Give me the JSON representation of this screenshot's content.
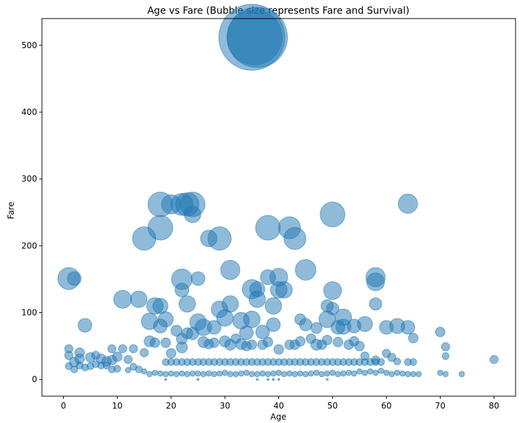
{
  "chart_data": {
    "type": "scatter",
    "title": "Age vs Fare (Bubble size represents Fare and Survival)",
    "xlabel": "Age",
    "ylabel": "Fare",
    "xlim": [
      -4,
      84
    ],
    "ylim": [
      -25,
      540
    ],
    "xticks": [
      0,
      10,
      20,
      30,
      40,
      50,
      60,
      70,
      80
    ],
    "yticks": [
      0,
      100,
      200,
      300,
      400,
      500
    ],
    "grid": false,
    "marker_color": "#1f77b4",
    "marker_opacity": 0.5,
    "points": [
      [
        35,
        512,
        48
      ],
      [
        36,
        512,
        44
      ],
      [
        35.5,
        512,
        40
      ],
      [
        1,
        151,
        16
      ],
      [
        2,
        151,
        10
      ],
      [
        15,
        211,
        17
      ],
      [
        18,
        227,
        18
      ],
      [
        18,
        262,
        18
      ],
      [
        20,
        262,
        14
      ],
      [
        22,
        262,
        16
      ],
      [
        23,
        262,
        17
      ],
      [
        24,
        262,
        18
      ],
      [
        24,
        247,
        12
      ],
      [
        27,
        211,
        12
      ],
      [
        29,
        211,
        17
      ],
      [
        31,
        164,
        14
      ],
      [
        38,
        227,
        18
      ],
      [
        42,
        227,
        16
      ],
      [
        43,
        211,
        16
      ],
      [
        50,
        247,
        18
      ],
      [
        64,
        263,
        14
      ],
      [
        45,
        164,
        15
      ],
      [
        11,
        120,
        13
      ],
      [
        14,
        120,
        12
      ],
      [
        16,
        87,
        12
      ],
      [
        17,
        110,
        12
      ],
      [
        18,
        110,
        11
      ],
      [
        19,
        90,
        11
      ],
      [
        18,
        80,
        10
      ],
      [
        22,
        150,
        15
      ],
      [
        22,
        134,
        10
      ],
      [
        23,
        113,
        12
      ],
      [
        25,
        151,
        10
      ],
      [
        25,
        86,
        12
      ],
      [
        26,
        78,
        12
      ],
      [
        28,
        78,
        10
      ],
      [
        29,
        105,
        12
      ],
      [
        30,
        92,
        12
      ],
      [
        31,
        113,
        12
      ],
      [
        33,
        88,
        12
      ],
      [
        35,
        90,
        12
      ],
      [
        35,
        135,
        14
      ],
      [
        36,
        120,
        12
      ],
      [
        36,
        135,
        11
      ],
      [
        38,
        153,
        11
      ],
      [
        39,
        110,
        12
      ],
      [
        40,
        153,
        13
      ],
      [
        40,
        134,
        12
      ],
      [
        41,
        134,
        12
      ],
      [
        39,
        82,
        10
      ],
      [
        34,
        70,
        10
      ],
      [
        37,
        71,
        10
      ],
      [
        44,
        90,
        8
      ],
      [
        45,
        82,
        9
      ],
      [
        47,
        77,
        8
      ],
      [
        49,
        110,
        9
      ],
      [
        49,
        90,
        12
      ],
      [
        50,
        106,
        9
      ],
      [
        50,
        133,
        13
      ],
      [
        52,
        93,
        12
      ],
      [
        52,
        79,
        11
      ],
      [
        51,
        78,
        10
      ],
      [
        54,
        80,
        10
      ],
      [
        56,
        83,
        11
      ],
      [
        58,
        153,
        14
      ],
      [
        58,
        146,
        13
      ],
      [
        58,
        113,
        9
      ],
      [
        60,
        78,
        10
      ],
      [
        62,
        80,
        11
      ],
      [
        64,
        78,
        10
      ],
      [
        65,
        62,
        7
      ],
      [
        70,
        71,
        7
      ],
      [
        71,
        49,
        6
      ],
      [
        71,
        35,
        5
      ],
      [
        80,
        30,
        6
      ],
      [
        4,
        81,
        10
      ],
      [
        2,
        26,
        7
      ],
      [
        3,
        31,
        7
      ],
      [
        3,
        40,
        7
      ],
      [
        1,
        36,
        6
      ],
      [
        1,
        46,
        6
      ],
      [
        5,
        33,
        7
      ],
      [
        6,
        36,
        6
      ],
      [
        7,
        31,
        7
      ],
      [
        8,
        27,
        7
      ],
      [
        9,
        29,
        7
      ],
      [
        10,
        34,
        7
      ],
      [
        11,
        46,
        6
      ],
      [
        9,
        46,
        6
      ],
      [
        12,
        30,
        6
      ],
      [
        13,
        46,
        6
      ],
      [
        15,
        40,
        6
      ],
      [
        16,
        57,
        8
      ],
      [
        17,
        55,
        7
      ],
      [
        19,
        55,
        7
      ],
      [
        20,
        39,
        7
      ],
      [
        21,
        73,
        8
      ],
      [
        22,
        61,
        8
      ],
      [
        22,
        48,
        8
      ],
      [
        23,
        69,
        8
      ],
      [
        24,
        69,
        9
      ],
      [
        26,
        56,
        8
      ],
      [
        27,
        53,
        7
      ],
      [
        28,
        55,
        7
      ],
      [
        30,
        57,
        8
      ],
      [
        31,
        52,
        8
      ],
      [
        32,
        61,
        7
      ],
      [
        33,
        53,
        8
      ],
      [
        34,
        50,
        7
      ],
      [
        35,
        52,
        7
      ],
      [
        37,
        52,
        7
      ],
      [
        38,
        56,
        7
      ],
      [
        40,
        45,
        7
      ],
      [
        42,
        52,
        7
      ],
      [
        43,
        52,
        7
      ],
      [
        44,
        57,
        7
      ],
      [
        46,
        61,
        7
      ],
      [
        47,
        52,
        8
      ],
      [
        48,
        52,
        7
      ],
      [
        49,
        59,
        7
      ],
      [
        51,
        56,
        7
      ],
      [
        53,
        52,
        7
      ],
      [
        54,
        57,
        7
      ],
      [
        55,
        50,
        7
      ],
      [
        56,
        35,
        6
      ],
      [
        58,
        29,
        6
      ],
      [
        60,
        39,
        6
      ],
      [
        61,
        33,
        6
      ],
      [
        62,
        27,
        5
      ],
      [
        64,
        26,
        5
      ],
      [
        65,
        26,
        5
      ],
      [
        1,
        20,
        5
      ],
      [
        2,
        15,
        5
      ],
      [
        3,
        21,
        5
      ],
      [
        4,
        18,
        5
      ],
      [
        5,
        20,
        5
      ],
      [
        6,
        23,
        5
      ],
      [
        7,
        21,
        5
      ],
      [
        8,
        21,
        5
      ],
      [
        9,
        15,
        5
      ],
      [
        10,
        16,
        5
      ],
      [
        12,
        14,
        4
      ],
      [
        13,
        19,
        5
      ],
      [
        14,
        15,
        5
      ],
      [
        15,
        12,
        4
      ],
      [
        16,
        8,
        4
      ],
      [
        17,
        10,
        4
      ],
      [
        18,
        9,
        4
      ],
      [
        19,
        8,
        4
      ],
      [
        20,
        9,
        4
      ],
      [
        21,
        8,
        4
      ],
      [
        22,
        9,
        4
      ],
      [
        23,
        8,
        4
      ],
      [
        24,
        9,
        4
      ],
      [
        25,
        9,
        4
      ],
      [
        26,
        8,
        4
      ],
      [
        27,
        9,
        4
      ],
      [
        28,
        8,
        4
      ],
      [
        29,
        9,
        4
      ],
      [
        30,
        10,
        4
      ],
      [
        31,
        8,
        4
      ],
      [
        32,
        8,
        4
      ],
      [
        33,
        9,
        4
      ],
      [
        34,
        10,
        4
      ],
      [
        35,
        8,
        4
      ],
      [
        36,
        8,
        4
      ],
      [
        37,
        9,
        4
      ],
      [
        38,
        8,
        4
      ],
      [
        39,
        9,
        4
      ],
      [
        40,
        10,
        4
      ],
      [
        41,
        8,
        4
      ],
      [
        42,
        9,
        4
      ],
      [
        43,
        8,
        4
      ],
      [
        44,
        9,
        4
      ],
      [
        45,
        8,
        4
      ],
      [
        46,
        9,
        4
      ],
      [
        47,
        10,
        4
      ],
      [
        48,
        8,
        4
      ],
      [
        49,
        9,
        4
      ],
      [
        50,
        10,
        4
      ],
      [
        51,
        8,
        4
      ],
      [
        52,
        9,
        4
      ],
      [
        53,
        10,
        4
      ],
      [
        54,
        9,
        4
      ],
      [
        55,
        12,
        4
      ],
      [
        56,
        10,
        4
      ],
      [
        57,
        12,
        4
      ],
      [
        58,
        10,
        4
      ],
      [
        59,
        13,
        4
      ],
      [
        60,
        10,
        4
      ],
      [
        61,
        8,
        4
      ],
      [
        62,
        10,
        4
      ],
      [
        63,
        9,
        4
      ],
      [
        64,
        8,
        4
      ],
      [
        65,
        8,
        4
      ],
      [
        66,
        8,
        4
      ],
      [
        70,
        10,
        4
      ],
      [
        71,
        8,
        4
      ],
      [
        74,
        8,
        4
      ],
      [
        19,
        26,
        5
      ],
      [
        20,
        26,
        5
      ],
      [
        21,
        26,
        5
      ],
      [
        22,
        26,
        5
      ],
      [
        23,
        26,
        5
      ],
      [
        24,
        26,
        5
      ],
      [
        25,
        26,
        5
      ],
      [
        26,
        26,
        5
      ],
      [
        27,
        26,
        5
      ],
      [
        28,
        26,
        5
      ],
      [
        29,
        26,
        5
      ],
      [
        30,
        26,
        5
      ],
      [
        31,
        26,
        5
      ],
      [
        32,
        26,
        5
      ],
      [
        33,
        26,
        5
      ],
      [
        34,
        26,
        5
      ],
      [
        35,
        26,
        5
      ],
      [
        36,
        26,
        5
      ],
      [
        37,
        26,
        5
      ],
      [
        38,
        26,
        5
      ],
      [
        39,
        26,
        5
      ],
      [
        40,
        26,
        5
      ],
      [
        41,
        26,
        5
      ],
      [
        42,
        26,
        5
      ],
      [
        43,
        26,
        5
      ],
      [
        44,
        26,
        5
      ],
      [
        45,
        26,
        5
      ],
      [
        46,
        26,
        5
      ],
      [
        47,
        26,
        5
      ],
      [
        48,
        26,
        5
      ],
      [
        49,
        26,
        5
      ],
      [
        50,
        26,
        5
      ],
      [
        51,
        26,
        5
      ],
      [
        52,
        26,
        5
      ],
      [
        53,
        26,
        5
      ],
      [
        54,
        26,
        5
      ],
      [
        55,
        26,
        5
      ],
      [
        56,
        26,
        5
      ],
      [
        57,
        26,
        5
      ],
      [
        58,
        26,
        5
      ],
      [
        59,
        26,
        5
      ],
      [
        19,
        0,
        1.5
      ],
      [
        25,
        0,
        1.5
      ],
      [
        36,
        0,
        1.5
      ],
      [
        38,
        0,
        1.5
      ],
      [
        39,
        0,
        1.5
      ],
      [
        40,
        0,
        1.5
      ],
      [
        49,
        0,
        1.5
      ]
    ]
  }
}
